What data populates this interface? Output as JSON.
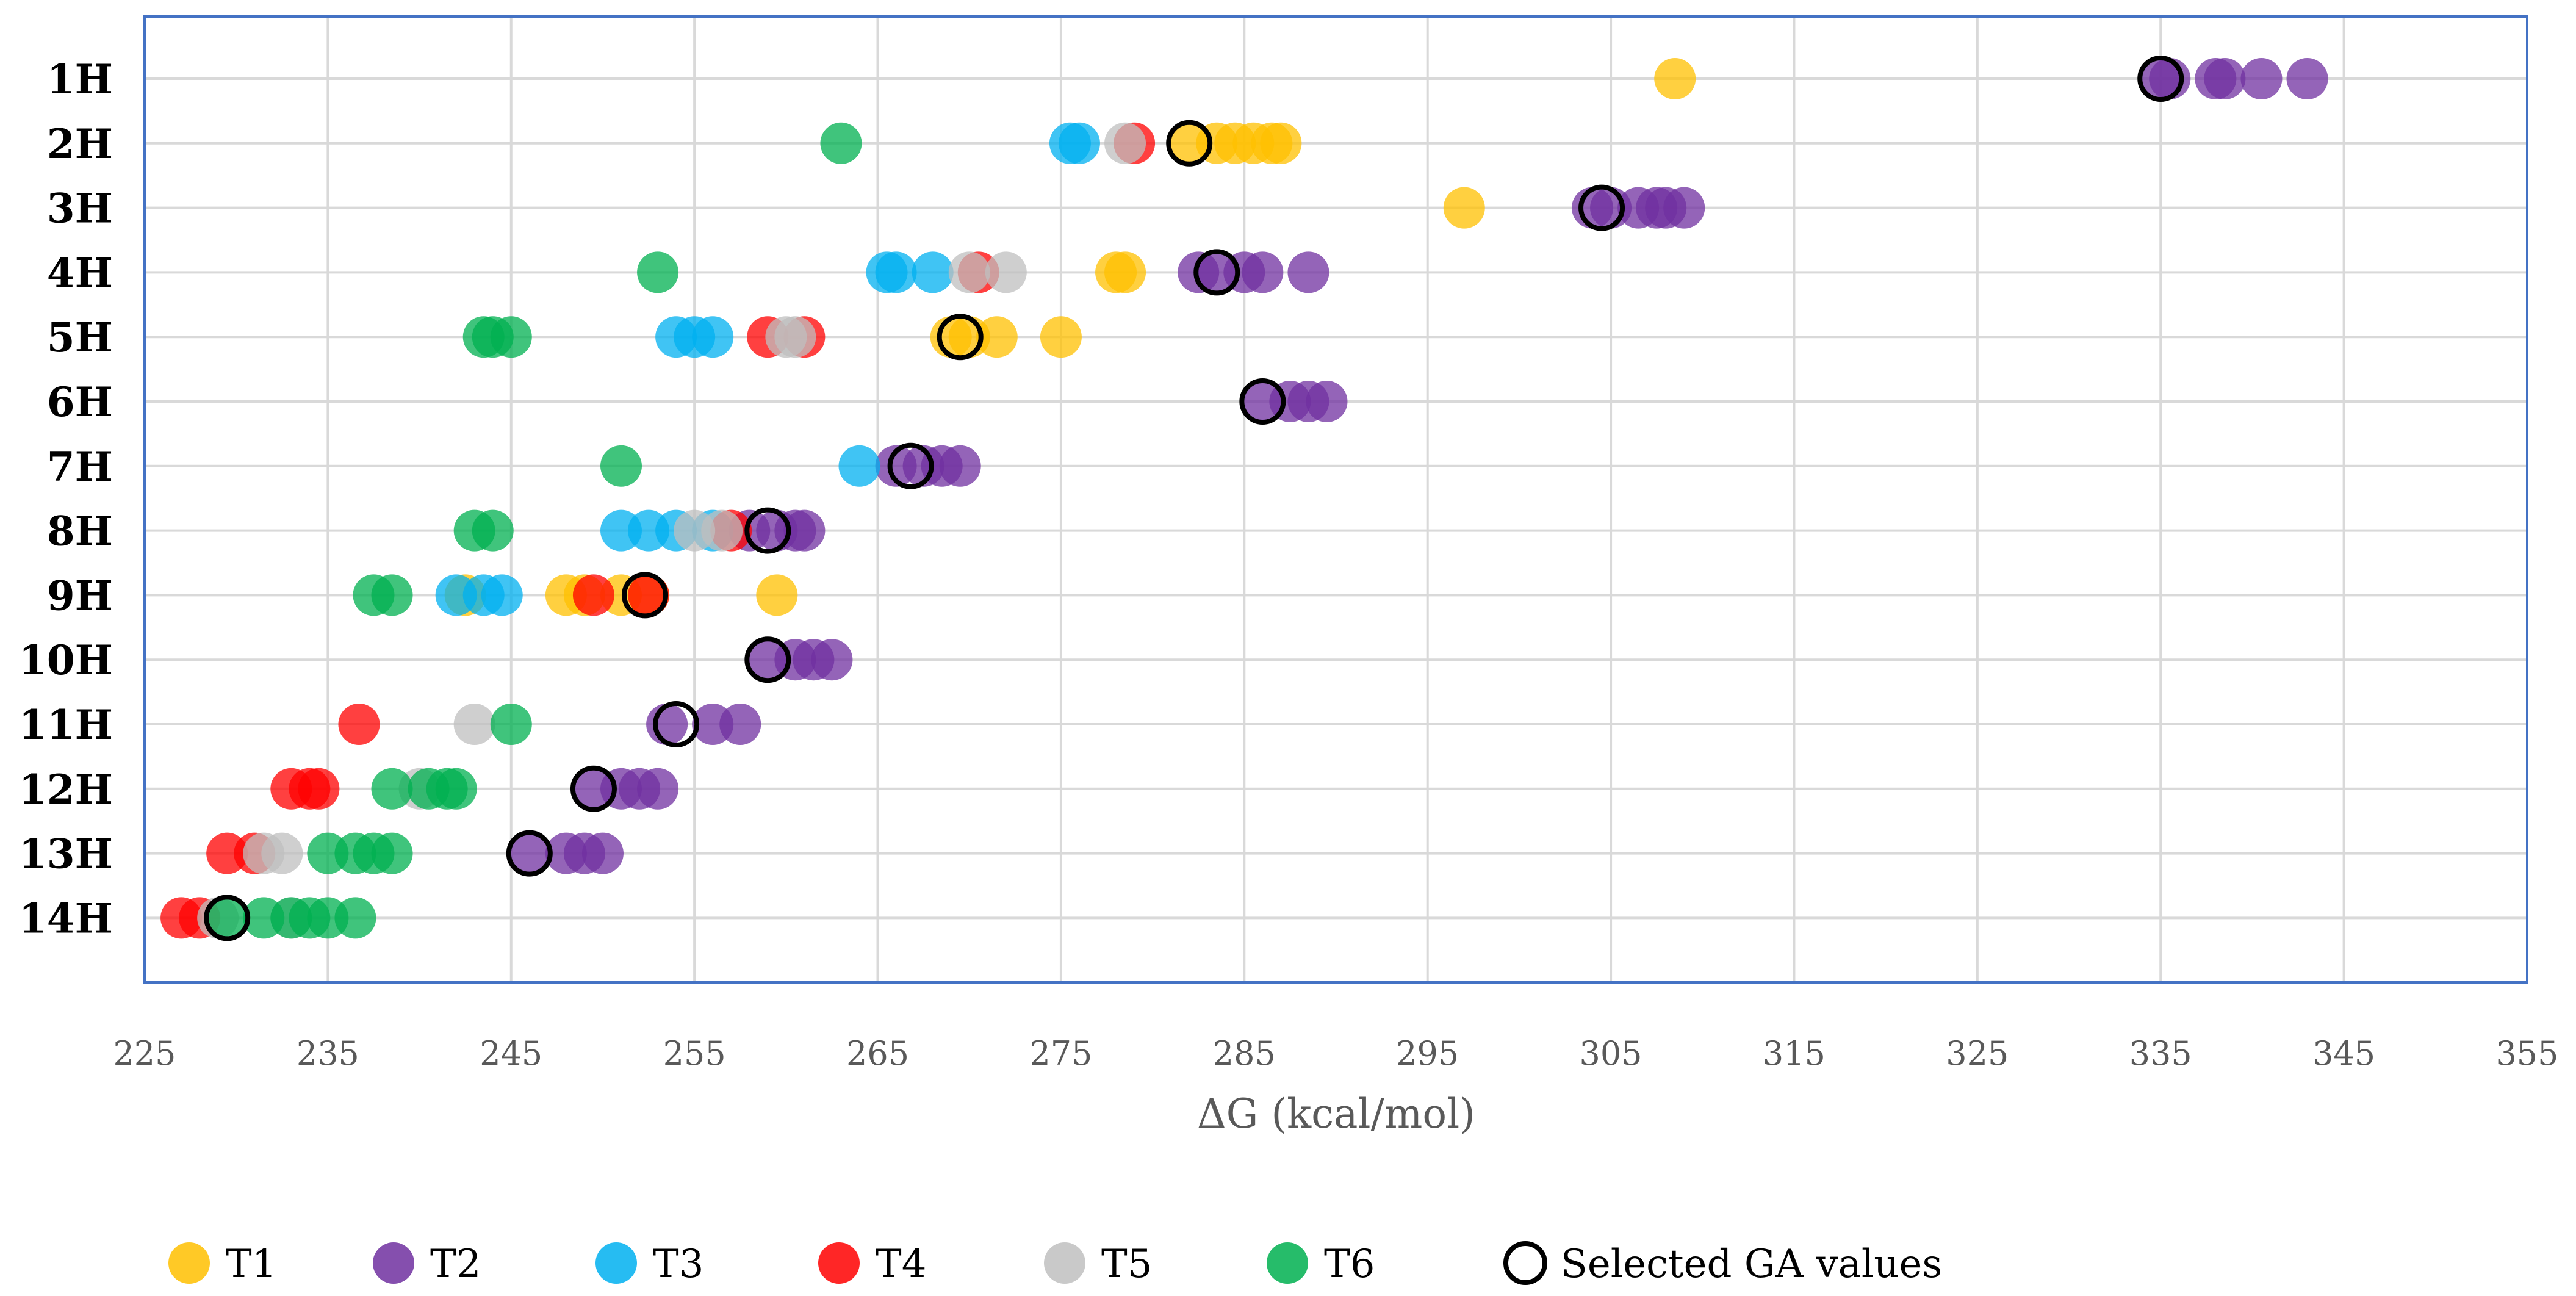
{
  "chart_data": {
    "type": "scatter",
    "title": "",
    "xlabel": "ΔG (kcal/mol)",
    "ylabel": "",
    "xlim": [
      225,
      355
    ],
    "xticks": [
      225,
      235,
      245,
      255,
      265,
      275,
      285,
      295,
      305,
      315,
      325,
      335,
      345,
      355
    ],
    "categories": [
      "1H",
      "2H",
      "3H",
      "4H",
      "5H",
      "6H",
      "7H",
      "8H",
      "9H",
      "10H",
      "11H",
      "12H",
      "13H",
      "14H"
    ],
    "grid": true,
    "legend_position": "bottom",
    "series": [
      {
        "name": "T1",
        "color": "#FFC000",
        "points": [
          [
            "1H",
            308.5
          ],
          [
            "2H",
            282
          ],
          [
            "2H",
            283.5
          ],
          [
            "2H",
            284.5
          ],
          [
            "2H",
            285.5
          ],
          [
            "2H",
            286.5
          ],
          [
            "2H",
            287
          ],
          [
            "3H",
            297
          ],
          [
            "4H",
            278
          ],
          [
            "4H",
            278.5
          ],
          [
            "5H",
            269
          ],
          [
            "5H",
            270
          ],
          [
            "5H",
            271.5
          ],
          [
            "5H",
            275
          ],
          [
            "9H",
            242.5
          ],
          [
            "9H",
            248
          ],
          [
            "9H",
            249
          ],
          [
            "9H",
            251
          ],
          [
            "9H",
            252.5
          ],
          [
            "9H",
            259.5
          ]
        ]
      },
      {
        "name": "T2",
        "color": "#7030A0",
        "points": [
          [
            "1H",
            335
          ],
          [
            "1H",
            335.5
          ],
          [
            "1H",
            338
          ],
          [
            "1H",
            338.5
          ],
          [
            "1H",
            340.5
          ],
          [
            "1H",
            343
          ],
          [
            "3H",
            304
          ],
          [
            "3H",
            305
          ],
          [
            "3H",
            306.5
          ],
          [
            "3H",
            307.5
          ],
          [
            "3H",
            308
          ],
          [
            "3H",
            309
          ],
          [
            "4H",
            282.5
          ],
          [
            "4H",
            283.5
          ],
          [
            "4H",
            285
          ],
          [
            "4H",
            286
          ],
          [
            "4H",
            288.5
          ],
          [
            "6H",
            286
          ],
          [
            "6H",
            287.5
          ],
          [
            "6H",
            288.5
          ],
          [
            "6H",
            289.5
          ],
          [
            "7H",
            266
          ],
          [
            "7H",
            267.5
          ],
          [
            "7H",
            268.5
          ],
          [
            "7H",
            269.5
          ],
          [
            "8H",
            258
          ],
          [
            "8H",
            259.5
          ],
          [
            "8H",
            260.5
          ],
          [
            "8H",
            261
          ],
          [
            "10H",
            259
          ],
          [
            "10H",
            260.5
          ],
          [
            "10H",
            261.5
          ],
          [
            "10H",
            262.5
          ],
          [
            "11H",
            253.5
          ],
          [
            "11H",
            256
          ],
          [
            "11H",
            257.5
          ],
          [
            "12H",
            249.5
          ],
          [
            "12H",
            251
          ],
          [
            "12H",
            252
          ],
          [
            "12H",
            253
          ],
          [
            "13H",
            246
          ],
          [
            "13H",
            248
          ],
          [
            "13H",
            249
          ],
          [
            "13H",
            250
          ]
        ]
      },
      {
        "name": "T3",
        "color": "#00B0F0",
        "points": [
          [
            "2H",
            275.5
          ],
          [
            "2H",
            276
          ],
          [
            "4H",
            265.5
          ],
          [
            "4H",
            266
          ],
          [
            "4H",
            268
          ],
          [
            "5H",
            254
          ],
          [
            "5H",
            255
          ],
          [
            "5H",
            256
          ],
          [
            "7H",
            264
          ],
          [
            "8H",
            251
          ],
          [
            "8H",
            252.5
          ],
          [
            "8H",
            254
          ],
          [
            "8H",
            256
          ],
          [
            "9H",
            242
          ],
          [
            "9H",
            243.5
          ],
          [
            "9H",
            244.5
          ]
        ]
      },
      {
        "name": "T4",
        "color": "#FF0000",
        "points": [
          [
            "2H",
            279
          ],
          [
            "4H",
            270.5
          ],
          [
            "5H",
            259
          ],
          [
            "5H",
            261
          ],
          [
            "8H",
            257
          ],
          [
            "9H",
            249.5
          ],
          [
            "9H",
            252.5
          ],
          [
            "11H",
            236.7
          ],
          [
            "12H",
            233
          ],
          [
            "12H",
            234
          ],
          [
            "12H",
            234.5
          ],
          [
            "13H",
            229.5
          ],
          [
            "13H",
            231
          ],
          [
            "14H",
            227
          ],
          [
            "14H",
            228
          ]
        ]
      },
      {
        "name": "T5",
        "color": "#BFBFBF",
        "points": [
          [
            "2H",
            278.5
          ],
          [
            "4H",
            270
          ],
          [
            "4H",
            272
          ],
          [
            "5H",
            260
          ],
          [
            "5H",
            260.5
          ],
          [
            "8H",
            255
          ],
          [
            "8H",
            256.5
          ],
          [
            "11H",
            243
          ],
          [
            "12H",
            240
          ],
          [
            "13H",
            231.5
          ],
          [
            "13H",
            232.5
          ],
          [
            "14H",
            229
          ],
          [
            "14H",
            233
          ]
        ]
      },
      {
        "name": "T6",
        "color": "#00B050",
        "points": [
          [
            "2H",
            263
          ],
          [
            "4H",
            253
          ],
          [
            "5H",
            243.5
          ],
          [
            "5H",
            244
          ],
          [
            "5H",
            245
          ],
          [
            "7H",
            251
          ],
          [
            "8H",
            243
          ],
          [
            "8H",
            244
          ],
          [
            "9H",
            237.5
          ],
          [
            "9H",
            238.5
          ],
          [
            "11H",
            245
          ],
          [
            "12H",
            238.5
          ],
          [
            "12H",
            240.5
          ],
          [
            "12H",
            241.5
          ],
          [
            "12H",
            242
          ],
          [
            "13H",
            235
          ],
          [
            "13H",
            236.5
          ],
          [
            "13H",
            237.5
          ],
          [
            "13H",
            238.5
          ],
          [
            "14H",
            229.5
          ],
          [
            "14H",
            231.5
          ],
          [
            "14H",
            233
          ],
          [
            "14H",
            234
          ],
          [
            "14H",
            235
          ],
          [
            "14H",
            236.5
          ]
        ]
      }
    ],
    "selected": {
      "name": "Selected GA values",
      "points": [
        [
          "1H",
          335
        ],
        [
          "2H",
          282
        ],
        [
          "3H",
          304.5
        ],
        [
          "4H",
          283.5
        ],
        [
          "5H",
          269.5
        ],
        [
          "6H",
          286
        ],
        [
          "7H",
          266.8
        ],
        [
          "8H",
          259
        ],
        [
          "9H",
          252.3
        ],
        [
          "10H",
          259
        ],
        [
          "11H",
          254
        ],
        [
          "12H",
          249.5
        ],
        [
          "13H",
          246
        ],
        [
          "14H",
          229.5
        ]
      ]
    }
  }
}
